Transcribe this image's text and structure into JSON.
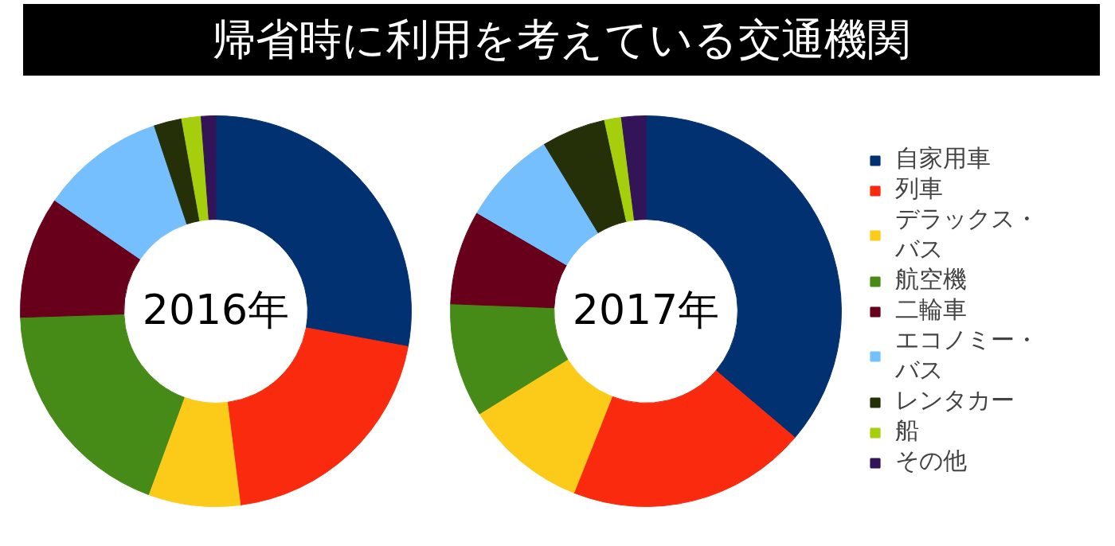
{
  "chart_data": {
    "type": "donut",
    "title": "帰省時に利用を考えている交通機関",
    "legend": "right",
    "categories": [
      "自家用車",
      "列車",
      "デラックス・バス",
      "航空機",
      "二輪車",
      "エコノミー・バス",
      "レンタカー",
      "船",
      "その他"
    ],
    "colors": [
      "#023172",
      "#fa2a0e",
      "#fccb1a",
      "#468b17",
      "#68001b",
      "#75bfff",
      "#263008",
      "#a5cf0d",
      "#331458"
    ],
    "series": [
      {
        "name": "2016年",
        "values": [
          27.9,
          20.1,
          7.6,
          18.9,
          10.1,
          10.3,
          2.3,
          1.6,
          1.2
        ]
      },
      {
        "name": "2017年",
        "values": [
          36.2,
          19.8,
          10.2,
          9.4,
          7.8,
          7.9,
          5.3,
          1.4,
          2.0
        ]
      }
    ]
  }
}
